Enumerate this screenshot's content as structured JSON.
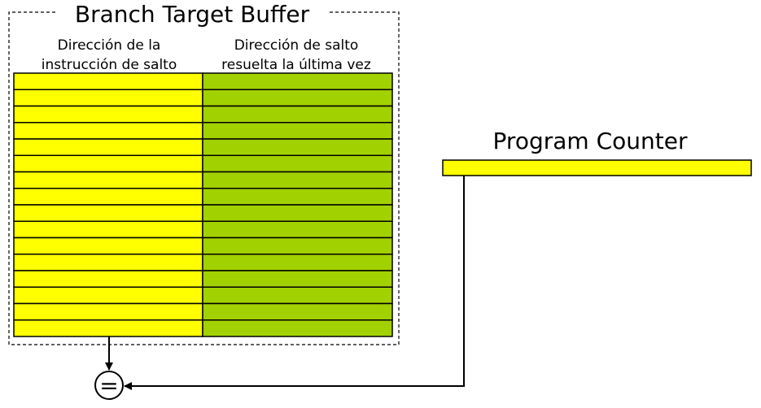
{
  "btb": {
    "title": "Branch Target Buffer",
    "columns": [
      {
        "line1": "Dirección de la",
        "line2": "instrucción de salto",
        "color": "#ffff00"
      },
      {
        "line1": "Dirección de salto",
        "line2": "resuelta la última vez",
        "color": "#a2d100"
      }
    ],
    "row_count": 16
  },
  "pc": {
    "label": "Program Counter",
    "color": "#ffff00"
  },
  "comparator": {
    "symbol": "="
  }
}
